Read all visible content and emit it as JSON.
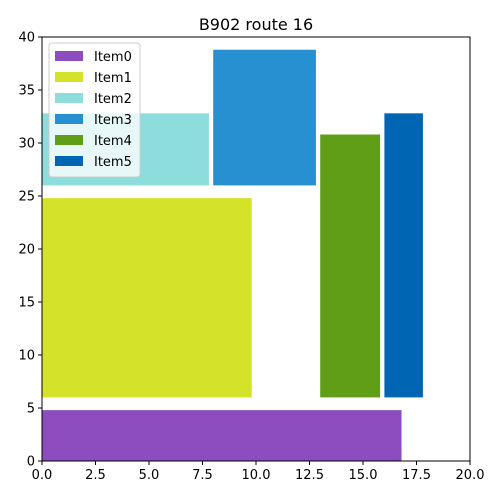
{
  "chart_data": {
    "type": "rectangles",
    "title": "B902 route 16",
    "xlabel": "",
    "ylabel": "",
    "xlim": [
      0,
      20
    ],
    "ylim": [
      0,
      40
    ],
    "xticks": [
      "0.0",
      "2.5",
      "5.0",
      "7.5",
      "10.0",
      "12.5",
      "15.0",
      "17.5",
      "20.0"
    ],
    "yticks": [
      "0",
      "5",
      "10",
      "15",
      "20",
      "25",
      "30",
      "35",
      "40"
    ],
    "grid": false,
    "legend_position": "top-left",
    "items": [
      {
        "name": "Item0",
        "x": 0,
        "y": 0,
        "width": 16.8,
        "height": 4.8,
        "color": "#8e4dbf"
      },
      {
        "name": "Item1",
        "x": 0,
        "y": 6,
        "width": 9.8,
        "height": 18.8,
        "color": "#d4e329"
      },
      {
        "name": "Item2",
        "x": 0,
        "y": 26,
        "width": 7.8,
        "height": 6.8,
        "color": "#8edddd"
      },
      {
        "name": "Item3",
        "x": 8,
        "y": 26,
        "width": 4.8,
        "height": 12.8,
        "color": "#2690d0"
      },
      {
        "name": "Item4",
        "x": 13,
        "y": 6,
        "width": 2.8,
        "height": 24.8,
        "color": "#5f9e16"
      },
      {
        "name": "Item5",
        "x": 16,
        "y": 6,
        "width": 1.8,
        "height": 26.8,
        "color": "#0066b3"
      }
    ]
  }
}
